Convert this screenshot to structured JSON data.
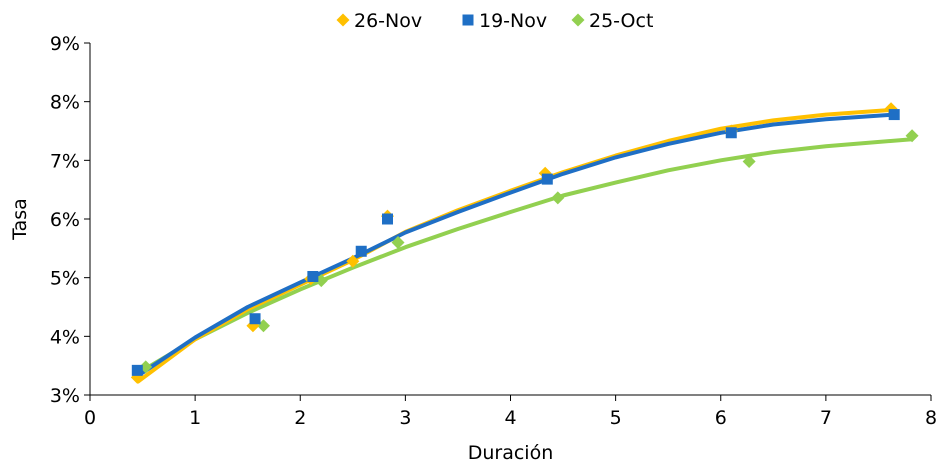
{
  "chart_data": {
    "type": "scatter",
    "title": "",
    "xlabel": "Duración",
    "ylabel": "Tasa",
    "xlim": [
      0,
      8
    ],
    "ylim": [
      3,
      9
    ],
    "x_ticks": [
      0,
      1,
      2,
      3,
      4,
      5,
      6,
      7,
      8
    ],
    "y_ticks": [
      3,
      4,
      5,
      6,
      7,
      8,
      9
    ],
    "y_tick_labels": [
      "3%",
      "4%",
      "5%",
      "6%",
      "7%",
      "8%",
      "9%"
    ],
    "legend_position": "top",
    "grid": false,
    "series": [
      {
        "name": "26-Nov",
        "color": "#FFC000",
        "marker": "diamond",
        "points": [
          {
            "x": 0.45,
            "y": 3.3
          },
          {
            "x": 1.55,
            "y": 4.18
          },
          {
            "x": 2.1,
            "y": 4.98
          },
          {
            "x": 2.5,
            "y": 5.28
          },
          {
            "x": 2.83,
            "y": 6.05
          },
          {
            "x": 4.33,
            "y": 6.78
          },
          {
            "x": 6.1,
            "y": 7.5
          },
          {
            "x": 7.62,
            "y": 7.88
          }
        ],
        "trend": [
          {
            "x": 0.45,
            "y": 3.22
          },
          {
            "x": 1.0,
            "y": 3.95
          },
          {
            "x": 1.5,
            "y": 4.46
          },
          {
            "x": 2.0,
            "y": 4.88
          },
          {
            "x": 2.5,
            "y": 5.3
          },
          {
            "x": 3.0,
            "y": 5.78
          },
          {
            "x": 3.5,
            "y": 6.15
          },
          {
            "x": 4.0,
            "y": 6.48
          },
          {
            "x": 4.5,
            "y": 6.8
          },
          {
            "x": 5.0,
            "y": 7.08
          },
          {
            "x": 5.5,
            "y": 7.33
          },
          {
            "x": 6.0,
            "y": 7.54
          },
          {
            "x": 6.5,
            "y": 7.68
          },
          {
            "x": 7.0,
            "y": 7.78
          },
          {
            "x": 7.62,
            "y": 7.86
          }
        ]
      },
      {
        "name": "19-Nov",
        "color": "#1F6FC5",
        "marker": "square",
        "points": [
          {
            "x": 0.45,
            "y": 3.42
          },
          {
            "x": 1.57,
            "y": 4.3
          },
          {
            "x": 2.12,
            "y": 5.02
          },
          {
            "x": 2.58,
            "y": 5.45
          },
          {
            "x": 2.83,
            "y": 6.0
          },
          {
            "x": 4.35,
            "y": 6.68
          },
          {
            "x": 6.1,
            "y": 7.47
          },
          {
            "x": 7.65,
            "y": 7.78
          }
        ],
        "trend": [
          {
            "x": 0.45,
            "y": 3.32
          },
          {
            "x": 1.0,
            "y": 3.98
          },
          {
            "x": 1.5,
            "y": 4.5
          },
          {
            "x": 2.0,
            "y": 4.92
          },
          {
            "x": 2.5,
            "y": 5.33
          },
          {
            "x": 3.0,
            "y": 5.77
          },
          {
            "x": 3.5,
            "y": 6.12
          },
          {
            "x": 4.0,
            "y": 6.45
          },
          {
            "x": 4.5,
            "y": 6.77
          },
          {
            "x": 5.0,
            "y": 7.05
          },
          {
            "x": 5.5,
            "y": 7.28
          },
          {
            "x": 6.0,
            "y": 7.47
          },
          {
            "x": 6.5,
            "y": 7.61
          },
          {
            "x": 7.0,
            "y": 7.7
          },
          {
            "x": 7.65,
            "y": 7.78
          }
        ]
      },
      {
        "name": "25-Oct",
        "color": "#92D050",
        "marker": "diamond",
        "points": [
          {
            "x": 0.53,
            "y": 3.48
          },
          {
            "x": 1.65,
            "y": 4.18
          },
          {
            "x": 2.2,
            "y": 4.95
          },
          {
            "x": 2.93,
            "y": 5.6
          },
          {
            "x": 4.45,
            "y": 6.36
          },
          {
            "x": 6.27,
            "y": 6.98
          },
          {
            "x": 7.82,
            "y": 7.42
          }
        ],
        "trend": [
          {
            "x": 0.53,
            "y": 3.45
          },
          {
            "x": 1.0,
            "y": 3.95
          },
          {
            "x": 1.5,
            "y": 4.4
          },
          {
            "x": 2.0,
            "y": 4.8
          },
          {
            "x": 2.5,
            "y": 5.17
          },
          {
            "x": 3.0,
            "y": 5.52
          },
          {
            "x": 3.5,
            "y": 5.83
          },
          {
            "x": 4.0,
            "y": 6.12
          },
          {
            "x": 4.5,
            "y": 6.4
          },
          {
            "x": 5.0,
            "y": 6.62
          },
          {
            "x": 5.5,
            "y": 6.83
          },
          {
            "x": 6.0,
            "y": 7.0
          },
          {
            "x": 6.5,
            "y": 7.14
          },
          {
            "x": 7.0,
            "y": 7.24
          },
          {
            "x": 7.82,
            "y": 7.36
          }
        ]
      }
    ]
  }
}
